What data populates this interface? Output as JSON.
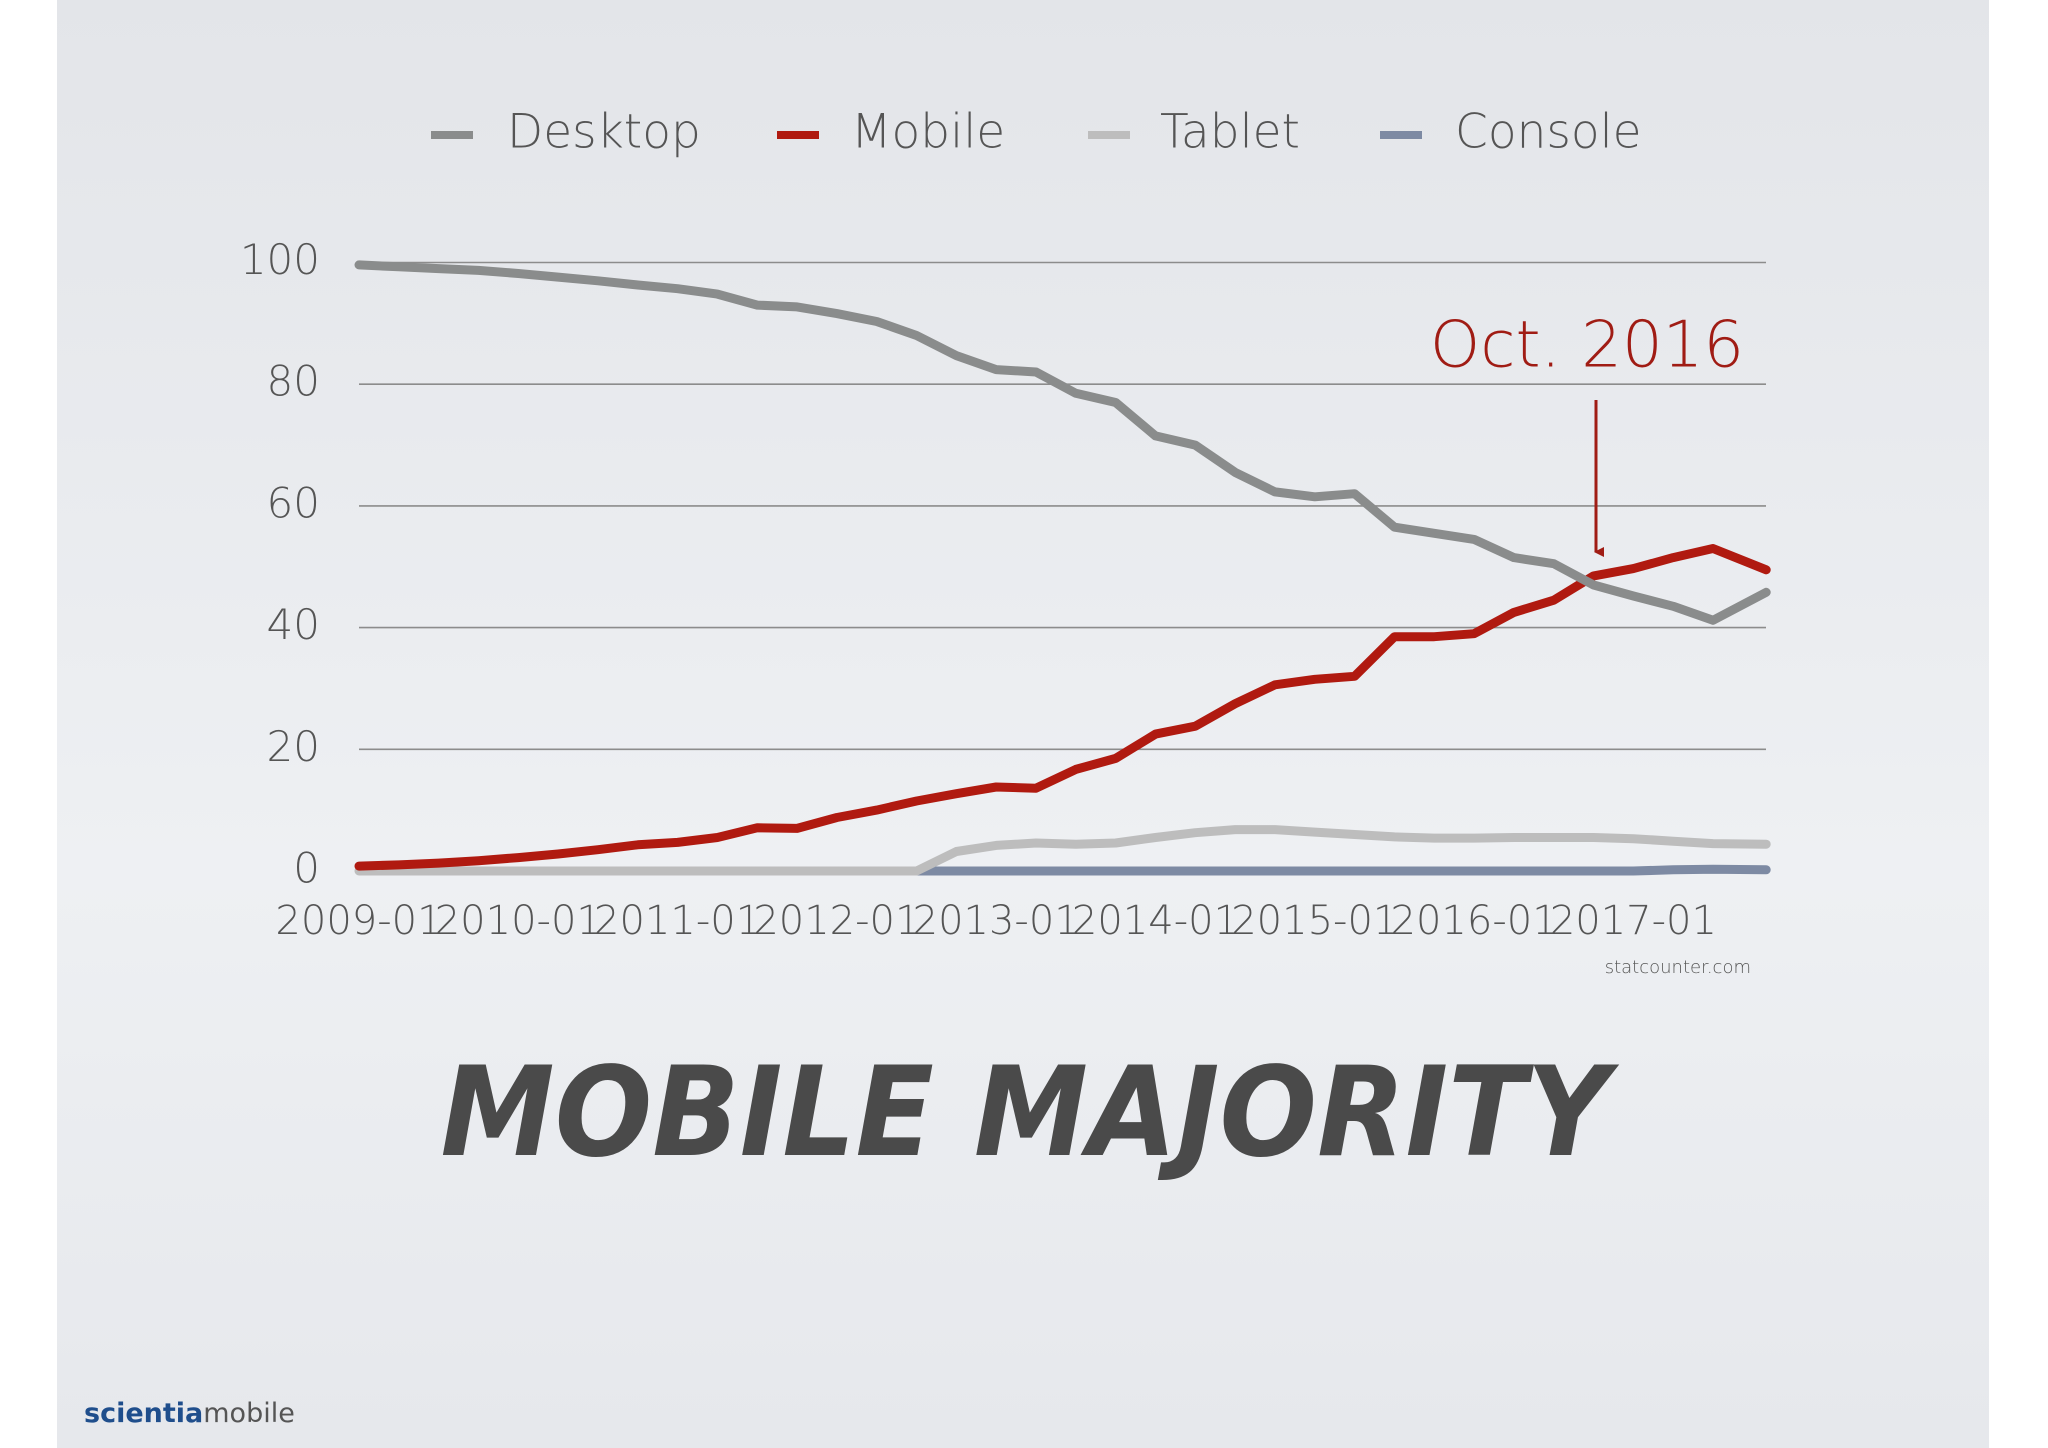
{
  "slide": {
    "headline": "MOBILE MAJORITY",
    "logo_bold": "scientia",
    "logo_rest": "mobile"
  },
  "chart_data": {
    "type": "line",
    "annotation": "Oct. 2016",
    "source": "statcounter.com",
    "x": [
      "2009-01",
      "2009-04",
      "2009-07",
      "2009-10",
      "2010-01",
      "2010-04",
      "2010-07",
      "2010-10",
      "2011-01",
      "2011-04",
      "2011-07",
      "2011-10",
      "2012-01",
      "2012-04",
      "2012-07",
      "2012-10",
      "2013-01",
      "2013-04",
      "2013-07",
      "2013-10",
      "2014-01",
      "2014-04",
      "2014-07",
      "2014-10",
      "2015-01",
      "2015-04",
      "2015-07",
      "2015-10",
      "2016-01",
      "2016-04",
      "2016-07",
      "2016-10",
      "2017-01",
      "2017-04",
      "2017-07",
      "2017-11"
    ],
    "xticks": [
      "2009-01",
      "2010-01",
      "2011-01",
      "2012-01",
      "2013-01",
      "2014-01",
      "2015-01",
      "2016-01",
      "2017-01"
    ],
    "ylim": [
      0,
      100
    ],
    "yticks": [
      0,
      20,
      40,
      60,
      80,
      100
    ],
    "grid": true,
    "series": [
      {
        "name": "Desktop",
        "color": "#8a8c8c",
        "values": [
          99.6,
          99.3,
          99,
          98.7,
          98.2,
          97.6,
          97,
          96.3,
          95.7,
          94.8,
          93,
          92.7,
          91.6,
          90.3,
          88,
          84.7,
          82.4,
          82,
          78.5,
          77,
          71.5,
          70,
          65.5,
          62.3,
          61.5,
          62,
          56.5,
          55.5,
          54.5,
          51.5,
          50.5,
          47,
          45.2,
          43.5,
          41.2,
          45.8
        ]
      },
      {
        "name": "Mobile",
        "color": "#b01a10",
        "values": [
          0.8,
          1,
          1.3,
          1.7,
          2.2,
          2.8,
          3.5,
          4.3,
          4.7,
          5.5,
          7.1,
          7,
          8.8,
          10,
          11.5,
          12.7,
          13.8,
          13.6,
          16.7,
          18.5,
          22.5,
          23.8,
          27.5,
          30.6,
          31.5,
          32,
          38.5,
          38.5,
          39,
          42.5,
          44.5,
          48.5,
          49.7,
          51.5,
          53,
          49.5
        ]
      },
      {
        "name": "Tablet",
        "color": "#bdbdbd",
        "values": [
          0,
          0,
          0,
          0,
          0,
          0,
          0,
          0,
          0,
          0,
          0,
          0,
          0,
          0,
          0,
          3.2,
          4.2,
          4.6,
          4.4,
          4.6,
          5.5,
          6.3,
          6.8,
          6.8,
          6.4,
          6,
          5.6,
          5.4,
          5.4,
          5.5,
          5.5,
          5.5,
          5.3,
          4.9,
          4.5,
          4.4
        ]
      },
      {
        "name": "Console",
        "color": "#7d8aa3",
        "values": [
          null,
          null,
          null,
          null,
          null,
          null,
          null,
          null,
          null,
          null,
          null,
          null,
          null,
          null,
          0,
          0,
          0,
          0,
          0,
          0,
          0,
          0,
          0,
          0,
          0,
          0,
          0,
          0,
          0,
          0,
          0,
          0,
          0,
          0.2,
          0.3,
          0.2
        ]
      }
    ]
  }
}
